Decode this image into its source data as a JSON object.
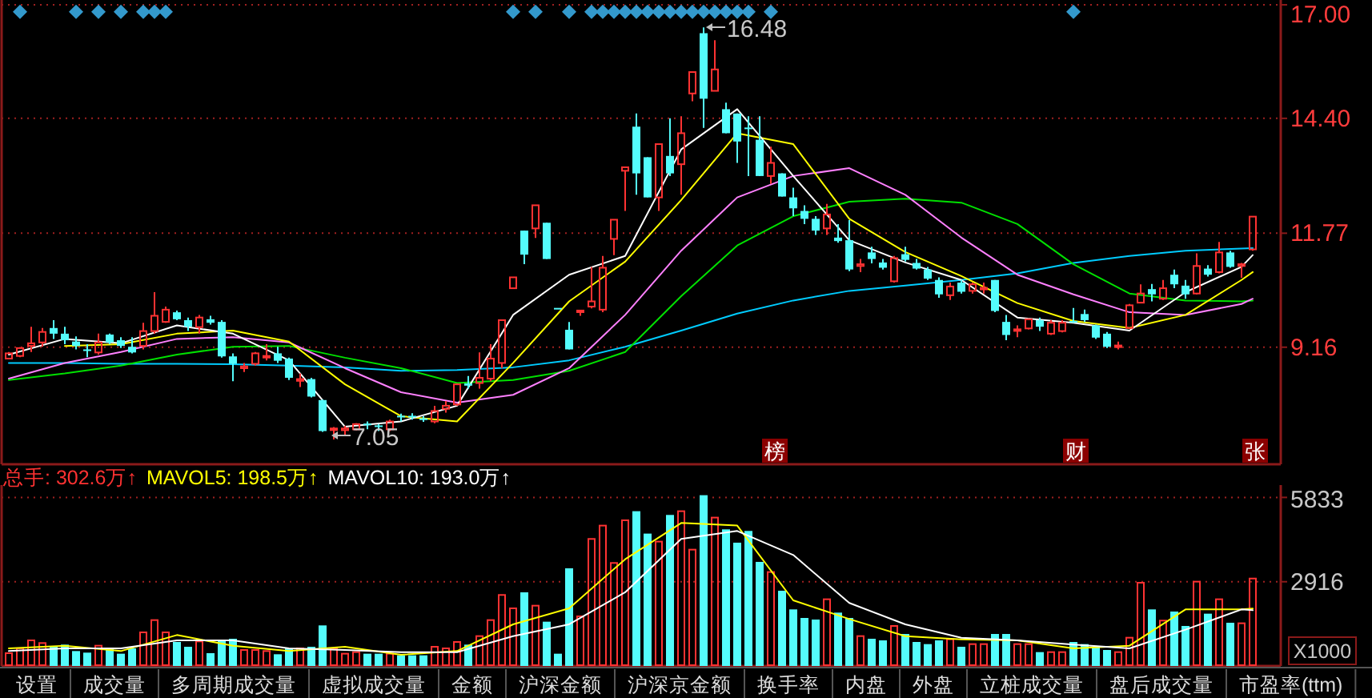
{
  "chart_data": [
    {
      "type": "candlestick",
      "tick_labels": "y",
      "grid": "y",
      "ylim": [
        6.48,
        17.11
      ],
      "yticks": [
        9.16,
        11.77,
        {
          "value": 14.4,
          "label": "14.40"
        },
        {
          "value": 17,
          "label": "17.00"
        }
      ],
      "categories": [
        null,
        null,
        null,
        null,
        null,
        null,
        null,
        null,
        null,
        null,
        null,
        null,
        null,
        null,
        null,
        null,
        null,
        null,
        null,
        null,
        null,
        null,
        null,
        null,
        null,
        null,
        null,
        null,
        null,
        null,
        null,
        null,
        null,
        null,
        null,
        null,
        null,
        null,
        null,
        null,
        null,
        null,
        null,
        null,
        null,
        null,
        null,
        null,
        null,
        null,
        null,
        null,
        null,
        null,
        null,
        null,
        null,
        null,
        null,
        null,
        null,
        null,
        null,
        null,
        null,
        null,
        null,
        null,
        null,
        null,
        null,
        null,
        null,
        null,
        null,
        null,
        null,
        null,
        null,
        null,
        null,
        null,
        null,
        null,
        null,
        null,
        null,
        null,
        null,
        null,
        null,
        null,
        null,
        null,
        null,
        null,
        null,
        null,
        null,
        null,
        null,
        null,
        null,
        null,
        null,
        null,
        null,
        null,
        null,
        null,
        null,
        null,
        null,
        null
      ],
      "ohlc": [
        [
          8.9,
          9.05,
          8.88,
          9.02
        ],
        [
          8.96,
          9.16,
          8.93,
          9.14
        ],
        [
          9.19,
          9.63,
          9.05,
          9.25
        ],
        [
          9.27,
          9.6,
          9.17,
          9.51
        ],
        [
          9.6,
          9.78,
          9.35,
          9.47
        ],
        [
          9.47,
          9.63,
          9.23,
          9.32
        ],
        [
          9.29,
          9.41,
          9.11,
          9.19
        ],
        [
          9.11,
          9.23,
          8.93,
          9.09
        ],
        [
          9.04,
          9.47,
          8.99,
          9.27
        ],
        [
          9.45,
          9.47,
          9.23,
          9.27
        ],
        [
          9.32,
          9.39,
          9.14,
          9.19
        ],
        [
          9.17,
          9.39,
          9.02,
          9.04
        ],
        [
          9.19,
          9.72,
          9.11,
          9.53
        ],
        [
          9.53,
          10.42,
          9.47,
          9.88
        ],
        [
          9.74,
          10.09,
          9.72,
          10.02
        ],
        [
          9.96,
          10.0,
          9.78,
          9.8
        ],
        [
          9.78,
          9.84,
          9.53,
          9.63
        ],
        [
          9.62,
          9.9,
          9.47,
          9.84
        ],
        [
          9.8,
          9.88,
          9.68,
          9.72
        ],
        [
          9.74,
          9.78,
          8.92,
          8.95
        ],
        [
          8.95,
          9.02,
          8.38,
          8.78
        ],
        [
          8.68,
          8.8,
          8.59,
          8.72
        ],
        [
          8.78,
          9.05,
          8.74,
          9.02
        ],
        [
          8.93,
          9.23,
          8.86,
          8.96
        ],
        [
          9.02,
          9.17,
          8.8,
          8.85
        ],
        [
          8.9,
          8.92,
          8.41,
          8.46
        ],
        [
          8.39,
          8.56,
          8.25,
          8.43
        ],
        [
          8.43,
          8.46,
          8.01,
          8.03
        ],
        [
          7.95,
          7.96,
          7.22,
          7.24
        ],
        [
          7.27,
          7.33,
          7.05,
          7.3
        ],
        [
          7.26,
          7.36,
          7.15,
          7.3
        ],
        [
          7.28,
          7.42,
          7.26,
          7.4
        ],
        [
          7.41,
          7.46,
          7.28,
          7.39
        ],
        [
          7.37,
          7.4,
          7.24,
          7.36
        ],
        [
          7.28,
          7.5,
          7.24,
          7.46
        ],
        [
          7.59,
          7.64,
          7.46,
          7.56
        ],
        [
          7.59,
          7.65,
          7.5,
          7.56
        ],
        [
          7.53,
          7.58,
          7.45,
          7.5
        ],
        [
          7.46,
          7.82,
          7.42,
          7.7
        ],
        [
          7.75,
          7.93,
          7.66,
          7.82
        ],
        [
          7.85,
          8.33,
          7.82,
          8.31
        ],
        [
          8.33,
          8.5,
          8.21,
          8.28
        ],
        [
          8.34,
          9.04,
          8.21,
          8.46
        ],
        [
          8.44,
          9.23,
          8.38,
          8.9
        ],
        [
          8.8,
          9.78,
          8.68,
          9.78
        ],
        [
          10.51,
          10.76,
          10.51,
          10.76
        ],
        [
          11.83,
          11.83,
          11.06,
          11.28
        ],
        [
          11.88,
          12.41,
          11.66,
          12.41
        ],
        [
          12.01,
          12.01,
          11.18,
          11.18
        ],
        [
          10.06,
          10.06,
          10.06,
          10.06
        ],
        [
          9.56,
          9.74,
          9.11,
          9.11
        ],
        [
          9.98,
          10.0,
          9.88,
          10.0
        ],
        [
          10.09,
          11.0,
          10.05,
          10.21
        ],
        [
          10.02,
          11.25,
          9.96,
          10.98
        ],
        [
          11.64,
          12.08,
          11.27,
          12.08
        ],
        [
          13.2,
          13.28,
          12.28,
          13.28
        ],
        [
          14.21,
          14.51,
          12.65,
          13.14
        ],
        [
          13.51,
          13.51,
          12.59,
          12.59
        ],
        [
          12.59,
          13.81,
          12.28,
          13.81
        ],
        [
          13.54,
          14.4,
          13.08,
          13.14
        ],
        [
          13.35,
          14.45,
          12.65,
          14.06
        ],
        [
          14.97,
          15.46,
          14.79,
          15.46
        ],
        [
          16.35,
          16.48,
          14.18,
          14.85
        ],
        [
          15.03,
          16.19,
          15.03,
          15.52
        ],
        [
          14.61,
          14.76,
          14.06,
          14.06
        ],
        [
          14.51,
          14.51,
          13.38,
          13.87
        ],
        [
          14.19,
          14.45,
          13.08,
          14.16
        ],
        [
          13.91,
          14.45,
          13.08,
          13.08
        ],
        [
          13.08,
          13.75,
          12.9,
          13.38
        ],
        [
          13.14,
          13.14,
          12.61,
          12.61
        ],
        [
          12.59,
          12.81,
          12.16,
          12.34
        ],
        [
          12.28,
          12.41,
          11.98,
          12.1
        ],
        [
          12.1,
          12.16,
          11.73,
          11.83
        ],
        [
          11.88,
          12.44,
          11.73,
          12.2
        ],
        [
          11.67,
          11.98,
          11.55,
          11.59
        ],
        [
          11.61,
          12.07,
          10.9,
          10.94
        ],
        [
          11.02,
          11.18,
          10.88,
          11.06
        ],
        [
          11.33,
          11.46,
          11.08,
          11.18
        ],
        [
          11.1,
          11.18,
          10.94,
          10.98
        ],
        [
          10.67,
          11.25,
          10.64,
          11.2
        ],
        [
          11.29,
          11.46,
          11.12,
          11.16
        ],
        [
          11.09,
          11.18,
          10.94,
          10.96
        ],
        [
          10.94,
          11.0,
          10.7,
          10.73
        ],
        [
          10.7,
          10.76,
          10.29,
          10.37
        ],
        [
          10.35,
          10.64,
          10.24,
          10.55
        ],
        [
          10.64,
          10.7,
          10.39,
          10.43
        ],
        [
          10.45,
          10.64,
          10.39,
          10.6
        ],
        [
          10.5,
          10.64,
          10.39,
          10.52
        ],
        [
          10.7,
          10.7,
          9.96,
          9.99
        ],
        [
          9.74,
          9.9,
          9.32,
          9.44
        ],
        [
          9.55,
          9.66,
          9.39,
          9.57
        ],
        [
          9.59,
          9.82,
          9.57,
          9.8
        ],
        [
          9.78,
          9.84,
          9.53,
          9.63
        ],
        [
          9.47,
          9.78,
          9.44,
          9.72
        ],
        [
          9.53,
          9.78,
          9.5,
          9.72
        ],
        [
          9.76,
          10.06,
          9.72,
          9.74
        ],
        [
          9.92,
          10.02,
          9.74,
          9.78
        ],
        [
          9.66,
          9.68,
          9.35,
          9.38
        ],
        [
          9.47,
          9.51,
          9.14,
          9.17
        ],
        [
          9.18,
          9.29,
          9.11,
          9.2
        ],
        [
          9.6,
          10.15,
          9.6,
          10.12
        ],
        [
          10.18,
          10.6,
          10.17,
          10.39
        ],
        [
          10.49,
          10.61,
          10.21,
          10.37
        ],
        [
          10.27,
          10.7,
          10.24,
          10.51
        ],
        [
          10.82,
          10.94,
          10.51,
          10.6
        ],
        [
          10.57,
          10.7,
          10.27,
          10.37
        ],
        [
          10.39,
          11.31,
          10.37,
          11.02
        ],
        [
          10.96,
          11.04,
          10.78,
          10.82
        ],
        [
          10.88,
          11.57,
          10.85,
          11.33
        ],
        [
          11.33,
          11.37,
          10.98,
          11.0
        ],
        [
          11.02,
          11.09,
          10.75,
          11.06
        ],
        [
          11.4,
          12.15,
          11.37,
          12.15
        ],
        null,
        null
      ],
      "colors": [
        "#ff3232",
        "#ff3232",
        "#ff3232",
        "#ff3232",
        "#54fcfc",
        "#54fcfc",
        "#54fcfc",
        "#54fcfc",
        "#ff3232",
        "#54fcfc",
        "#54fcfc",
        "#54fcfc",
        "#ff3232",
        "#ff3232",
        "#ff3232",
        "#54fcfc",
        "#54fcfc",
        "#ff3232",
        "#54fcfc",
        "#54fcfc",
        "#54fcfc",
        "#ff3232",
        "#ff3232",
        "#ff3232",
        "#54fcfc",
        "#54fcfc",
        "#ff3232",
        "#54fcfc",
        "#54fcfc",
        "#ff3232",
        "#ff3232",
        "#ff3232",
        "#54fcfc",
        "#54fcfc",
        "#ff3232",
        "#54fcfc",
        "#54fcfc",
        "#54fcfc",
        "#ff3232",
        "#ff3232",
        "#ff3232",
        "#54fcfc",
        "#ff3232",
        "#ff3232",
        "#ff3232",
        "#ff3232",
        "#54fcfc",
        "#ff3232",
        "#54fcfc",
        "#54fcfc",
        "#54fcfc",
        "#ff3232",
        "#ff3232",
        "#ff3232",
        "#ff3232",
        "#ff3232",
        "#54fcfc",
        "#54fcfc",
        "#ff3232",
        "#54fcfc",
        "#ff3232",
        "#ff3232",
        "#54fcfc",
        "#ff3232",
        "#54fcfc",
        "#54fcfc",
        "#54fcfc",
        "#54fcfc",
        "#ff3232",
        "#54fcfc",
        "#54fcfc",
        "#54fcfc",
        "#54fcfc",
        "#ff3232",
        "#54fcfc",
        "#54fcfc",
        "#ff3232",
        "#54fcfc",
        "#54fcfc",
        "#ff3232",
        "#54fcfc",
        "#54fcfc",
        "#54fcfc",
        "#54fcfc",
        "#ff3232",
        "#54fcfc",
        "#ff3232",
        "#ff3232",
        "#54fcfc",
        "#54fcfc",
        "#ff3232",
        "#ff3232",
        "#54fcfc",
        "#ff3232",
        "#ff3232",
        "#54fcfc",
        "#54fcfc",
        "#54fcfc",
        "#54fcfc",
        "#ff3232",
        "#ff3232",
        "#ff3232",
        "#54fcfc",
        "#ff3232",
        "#54fcfc",
        "#54fcfc",
        "#ff3232",
        "#54fcfc",
        "#ff3232",
        "#54fcfc",
        "#ff3232",
        "#ff3232",
        null,
        null
      ],
      "series": [
        {
          "type": "line",
          "color": "#00ccff",
          "values": [
            8.8,
            null,
            null,
            null,
            null,
            8.8,
            null,
            null,
            null,
            null,
            8.78,
            null,
            null,
            null,
            null,
            8.78,
            null,
            null,
            null,
            null,
            8.77,
            null,
            null,
            null,
            null,
            8.74,
            null,
            null,
            null,
            null,
            8.7,
            null,
            null,
            null,
            null,
            8.62,
            null,
            null,
            null,
            null,
            8.64,
            null,
            null,
            null,
            null,
            8.7,
            null,
            null,
            null,
            null,
            8.86,
            null,
            null,
            null,
            null,
            9.17,
            null,
            null,
            null,
            null,
            9.54,
            null,
            null,
            null,
            null,
            9.93,
            null,
            null,
            null,
            null,
            10.23,
            null,
            null,
            null,
            null,
            10.45,
            null,
            null,
            null,
            null,
            10.57,
            null,
            null,
            null,
            null,
            10.7,
            null,
            null,
            null,
            null,
            10.85,
            null,
            null,
            null,
            null,
            11.09,
            null,
            null,
            null,
            null,
            11.25,
            null,
            null,
            null,
            null,
            11.37,
            null,
            null,
            null,
            null,
            11.42,
            11.43,
            null,
            null
          ]
        },
        {
          "type": "line",
          "color": "#00e000",
          "values": [
            8.41,
            null,
            null,
            null,
            null,
            8.56,
            null,
            null,
            null,
            null,
            8.74,
            null,
            null,
            null,
            null,
            8.99,
            null,
            null,
            null,
            null,
            9.17,
            null,
            null,
            null,
            null,
            9.19,
            null,
            null,
            null,
            null,
            8.92,
            null,
            null,
            null,
            null,
            8.68,
            null,
            null,
            null,
            null,
            8.34,
            null,
            null,
            null,
            null,
            8.41,
            null,
            null,
            null,
            null,
            8.62,
            null,
            null,
            null,
            null,
            9.05,
            null,
            null,
            null,
            null,
            10.33,
            null,
            null,
            null,
            null,
            11.49,
            null,
            null,
            null,
            null,
            12.16,
            null,
            null,
            null,
            null,
            12.49,
            null,
            null,
            null,
            null,
            12.56,
            null,
            null,
            null,
            null,
            12.47,
            null,
            null,
            null,
            null,
            11.98,
            null,
            null,
            null,
            null,
            11.06,
            null,
            null,
            null,
            null,
            10.39,
            null,
            null,
            null,
            null,
            10.23,
            null,
            null,
            null,
            null,
            10.21,
            10.23,
            null,
            null
          ]
        },
        {
          "type": "line",
          "color": "#ff80ff",
          "values": [
            8.44,
            null,
            null,
            null,
            null,
            8.8,
            null,
            null,
            null,
            null,
            9.05,
            null,
            null,
            null,
            null,
            9.35,
            null,
            null,
            null,
            null,
            9.39,
            null,
            null,
            null,
            null,
            9.27,
            null,
            null,
            null,
            null,
            8.68,
            null,
            null,
            null,
            null,
            8.13,
            null,
            null,
            null,
            null,
            7.89,
            null,
            null,
            null,
            null,
            8.07,
            null,
            null,
            null,
            null,
            8.68,
            null,
            null,
            null,
            null,
            9.9,
            null,
            null,
            null,
            null,
            11.37,
            null,
            null,
            null,
            null,
            12.59,
            null,
            null,
            null,
            null,
            13.08,
            null,
            null,
            null,
            null,
            13.26,
            null,
            null,
            null,
            null,
            12.65,
            null,
            null,
            null,
            null,
            11.67,
            null,
            null,
            null,
            null,
            10.82,
            null,
            null,
            null,
            null,
            10.37,
            null,
            null,
            null,
            null,
            9.96,
            null,
            null,
            null,
            null,
            9.9,
            null,
            null,
            null,
            null,
            10.15,
            10.27,
            null,
            null
          ]
        },
        {
          "type": "line",
          "color": "#ffff00",
          "values": [
            null,
            null,
            null,
            null,
            null,
            9.19,
            null,
            null,
            null,
            null,
            9.23,
            null,
            null,
            null,
            null,
            9.47,
            null,
            null,
            null,
            null,
            9.54,
            null,
            null,
            null,
            null,
            9.29,
            null,
            null,
            null,
            null,
            8.31,
            null,
            null,
            null,
            null,
            7.58,
            null,
            null,
            null,
            null,
            7.46,
            null,
            null,
            null,
            null,
            8.8,
            null,
            null,
            null,
            null,
            10.21,
            null,
            null,
            null,
            null,
            11.12,
            null,
            null,
            null,
            null,
            12.53,
            null,
            null,
            null,
            null,
            14.06,
            null,
            null,
            null,
            null,
            13.81,
            null,
            null,
            null,
            null,
            12.1,
            null,
            null,
            null,
            null,
            11.34,
            null,
            null,
            null,
            null,
            10.79,
            null,
            null,
            null,
            null,
            10.17,
            null,
            null,
            null,
            null,
            9.76,
            null,
            null,
            null,
            null,
            9.6,
            null,
            null,
            null,
            null,
            9.9,
            null,
            null,
            null,
            null,
            10.7,
            10.88,
            null,
            null
          ]
        },
        {
          "type": "line",
          "color": "#ffffff",
          "values": [
            8.99,
            null,
            null,
            null,
            null,
            9.35,
            null,
            null,
            null,
            null,
            9.25,
            null,
            null,
            null,
            null,
            9.66,
            null,
            null,
            null,
            null,
            9.47,
            null,
            null,
            null,
            null,
            8.86,
            null,
            null,
            null,
            null,
            7.34,
            null,
            null,
            null,
            null,
            7.46,
            null,
            null,
            null,
            null,
            7.82,
            null,
            null,
            null,
            null,
            9.9,
            null,
            null,
            null,
            null,
            10.82,
            null,
            null,
            null,
            null,
            11.25,
            null,
            null,
            null,
            null,
            13.69,
            null,
            null,
            null,
            null,
            14.61,
            null,
            null,
            null,
            null,
            13.08,
            null,
            null,
            null,
            null,
            11.61,
            null,
            null,
            null,
            null,
            11.1,
            null,
            null,
            null,
            null,
            10.7,
            null,
            null,
            null,
            null,
            9.84,
            null,
            null,
            null,
            null,
            9.72,
            null,
            null,
            null,
            null,
            9.54,
            null,
            null,
            null,
            null,
            10.42,
            null,
            null,
            null,
            null,
            11.0,
            11.27,
            null,
            null
          ]
        },
        {
          "type": "scatter",
          "marker": "diamond",
          "color": "#3399cc",
          "values": [
            null,
            16.84,
            null,
            null,
            null,
            null,
            16.84,
            null,
            16.84,
            null,
            16.84,
            null,
            16.84,
            16.84,
            16.84,
            null,
            null,
            null,
            null,
            null,
            null,
            null,
            null,
            null,
            null,
            null,
            null,
            null,
            null,
            null,
            null,
            null,
            null,
            null,
            null,
            null,
            null,
            null,
            null,
            null,
            null,
            null,
            null,
            null,
            null,
            16.84,
            null,
            16.84,
            null,
            null,
            16.84,
            null,
            16.84,
            16.84,
            16.84,
            16.84,
            16.84,
            16.84,
            16.84,
            16.84,
            16.84,
            16.84,
            16.84,
            16.84,
            16.84,
            16.84,
            16.84,
            null,
            16.84,
            null,
            null,
            null,
            null,
            null,
            null,
            null,
            null,
            null,
            null,
            null,
            null,
            null,
            null,
            null,
            null,
            null,
            null,
            null,
            null,
            null,
            null,
            null,
            null,
            null,
            null,
            16.84,
            null,
            null,
            null,
            null,
            null,
            null,
            null,
            null,
            null,
            null,
            null,
            null,
            null,
            null,
            null,
            null,
            null,
            null
          ]
        }
      ],
      "annotations": [
        "16.48",
        "7.05",
        "榜",
        "财",
        "张"
      ]
    },
    {
      "type": "bar",
      "tick_labels": "y",
      "grid": "y",
      "ylim": [
        0,
        6260
      ],
      "yticks": [
        2916,
        5833
      ],
      "ylabel": "X1000",
      "categories": [
        null,
        null,
        null,
        null,
        null,
        null,
        null,
        null,
        null,
        null,
        null,
        null,
        null,
        null,
        null,
        null,
        null,
        null,
        null,
        null,
        null,
        null,
        null,
        null,
        null,
        null,
        null,
        null,
        null,
        null,
        null,
        null,
        null,
        null,
        null,
        null,
        null,
        null,
        null,
        null,
        null,
        null,
        null,
        null,
        null,
        null,
        null,
        null,
        null,
        null,
        null,
        null,
        null,
        null,
        null,
        null,
        null,
        null,
        null,
        null,
        null,
        null,
        null,
        null,
        null,
        null,
        null,
        null,
        null,
        null,
        null,
        null,
        null,
        null,
        null,
        null,
        null,
        null,
        null,
        null,
        null,
        null,
        null,
        null,
        null,
        null,
        null,
        null,
        null,
        null,
        null,
        null,
        null,
        null,
        null,
        null,
        null,
        null,
        null,
        null,
        null,
        null,
        null,
        null,
        null,
        null,
        null,
        null,
        null,
        null,
        null,
        null,
        null,
        null
      ],
      "series": [
        {
          "type": "bar",
          "color": "#ff3232",
          "values": [
            443,
            610,
            887,
            794,
            665,
            739,
            517,
            462,
            702,
            610,
            425,
            610,
            1164,
            1588,
            1164,
            831,
            665,
            850,
            443,
            887,
            942,
            554,
            554,
            517,
            406,
            610,
            610,
            665,
            1404,
            610,
            425,
            480,
            425,
            425,
            425,
            369,
            369,
            369,
            665,
            610,
            831,
            739,
            1034,
            1588,
            2457,
            1995,
            2549,
            2087,
            1533,
            425,
            3380,
            1718,
            4396,
            4858,
            3565,
            5042,
            5356,
            4581,
            4304,
            5227,
            5356,
            4026,
            5910,
            5135,
            4728,
            4267,
            4673,
            3602,
            3251,
            2604,
            1958,
            1662,
            1607,
            2309,
            1847,
            1662,
            1034,
            942,
            887,
            1385,
            1108,
            831,
            757,
            887,
            924,
            665,
            757,
            757,
            1108,
            1108,
            757,
            757,
            480,
            480,
            480,
            831,
            757,
            647,
            554,
            480,
            979,
            2881,
            1958,
            1570,
            1884,
            1385,
            2918,
            1810,
            2309,
            1496,
            1478,
            3026,
            null,
            null
          ],
          "colors": [
            "#ff3232",
            "#ff3232",
            "#ff3232",
            "#ff3232",
            "#54fcfc",
            "#54fcfc",
            "#54fcfc",
            "#54fcfc",
            "#ff3232",
            "#54fcfc",
            "#54fcfc",
            "#54fcfc",
            "#ff3232",
            "#ff3232",
            "#ff3232",
            "#54fcfc",
            "#54fcfc",
            "#ff3232",
            "#54fcfc",
            "#54fcfc",
            "#54fcfc",
            "#ff3232",
            "#ff3232",
            "#ff3232",
            "#54fcfc",
            "#54fcfc",
            "#ff3232",
            "#54fcfc",
            "#54fcfc",
            "#ff3232",
            "#ff3232",
            "#ff3232",
            "#54fcfc",
            "#54fcfc",
            "#ff3232",
            "#54fcfc",
            "#54fcfc",
            "#54fcfc",
            "#ff3232",
            "#ff3232",
            "#ff3232",
            "#54fcfc",
            "#ff3232",
            "#ff3232",
            "#ff3232",
            "#ff3232",
            "#54fcfc",
            "#ff3232",
            "#54fcfc",
            "#54fcfc",
            "#54fcfc",
            "#ff3232",
            "#ff3232",
            "#ff3232",
            "#ff3232",
            "#ff3232",
            "#54fcfc",
            "#54fcfc",
            "#ff3232",
            "#54fcfc",
            "#ff3232",
            "#ff3232",
            "#54fcfc",
            "#ff3232",
            "#54fcfc",
            "#54fcfc",
            "#54fcfc",
            "#54fcfc",
            "#ff3232",
            "#54fcfc",
            "#54fcfc",
            "#54fcfc",
            "#54fcfc",
            "#ff3232",
            "#54fcfc",
            "#54fcfc",
            "#ff3232",
            "#54fcfc",
            "#54fcfc",
            "#ff3232",
            "#54fcfc",
            "#54fcfc",
            "#54fcfc",
            "#54fcfc",
            "#ff3232",
            "#54fcfc",
            "#ff3232",
            "#ff3232",
            "#54fcfc",
            "#54fcfc",
            "#ff3232",
            "#ff3232",
            "#54fcfc",
            "#ff3232",
            "#ff3232",
            "#54fcfc",
            "#54fcfc",
            "#54fcfc",
            "#54fcfc",
            "#ff3232",
            "#ff3232",
            "#ff3232",
            "#54fcfc",
            "#ff3232",
            "#54fcfc",
            "#54fcfc",
            "#ff3232",
            "#54fcfc",
            "#ff3232",
            "#54fcfc",
            "#ff3232",
            "#ff3232",
            null,
            null
          ]
        },
        {
          "type": "line",
          "color": "#ffff00",
          "values": [
            610,
            null,
            null,
            null,
            null,
            702,
            null,
            null,
            null,
            null,
            517,
            null,
            null,
            null,
            null,
            1071,
            null,
            null,
            null,
            null,
            702,
            null,
            null,
            null,
            null,
            517,
            null,
            null,
            null,
            null,
            665,
            null,
            null,
            null,
            null,
            388,
            null,
            null,
            null,
            null,
            517,
            null,
            null,
            null,
            null,
            1441,
            null,
            null,
            null,
            null,
            1995,
            null,
            null,
            null,
            null,
            3694,
            null,
            null,
            null,
            null,
            4950,
            null,
            null,
            null,
            null,
            4858,
            null,
            null,
            null,
            null,
            2272,
            null,
            null,
            null,
            null,
            1625,
            null,
            null,
            null,
            null,
            1034,
            null,
            null,
            null,
            null,
            924,
            null,
            null,
            null,
            null,
            887,
            null,
            null,
            null,
            null,
            610,
            null,
            null,
            null,
            null,
            702,
            null,
            null,
            null,
            null,
            1958,
            null,
            null,
            null,
            null,
            1958,
            1985,
            null,
            null
          ]
        },
        {
          "type": "line",
          "color": "#ffffff",
          "values": [
            517,
            null,
            null,
            null,
            null,
            610,
            null,
            null,
            null,
            null,
            610,
            null,
            null,
            null,
            null,
            887,
            null,
            null,
            null,
            null,
            887,
            null,
            null,
            null,
            null,
            610,
            null,
            null,
            null,
            null,
            554,
            null,
            null,
            null,
            null,
            480,
            null,
            null,
            null,
            null,
            480,
            null,
            null,
            null,
            null,
            1034,
            null,
            null,
            null,
            null,
            1441,
            null,
            null,
            null,
            null,
            2549,
            null,
            null,
            null,
            null,
            4400,
            null,
            null,
            null,
            null,
            4673,
            null,
            null,
            null,
            null,
            3842,
            null,
            null,
            null,
            null,
            2180,
            null,
            null,
            null,
            null,
            1441,
            null,
            null,
            null,
            null,
            979,
            null,
            null,
            null,
            null,
            887,
            null,
            null,
            null,
            null,
            739,
            null,
            null,
            null,
            null,
            610,
            null,
            null,
            null,
            null,
            1256,
            null,
            null,
            null,
            null,
            1958,
            1930,
            null,
            null
          ]
        }
      ],
      "annotations": [
        "总手: 302.6万↑",
        "MAVOL5: 198.5万↑",
        "MAVOL10: 193.0万↑"
      ]
    },
    {
      "type": "other",
      "annotations": [
        "设置",
        "成交量",
        "多周期成交量",
        "虚拟成交量",
        "金额",
        "沪深金额",
        "沪深京金额",
        "换手率",
        "内盘",
        "外盘",
        "立桩成交量",
        "盘后成交量",
        "市盈率(ttm)"
      ]
    }
  ]
}
